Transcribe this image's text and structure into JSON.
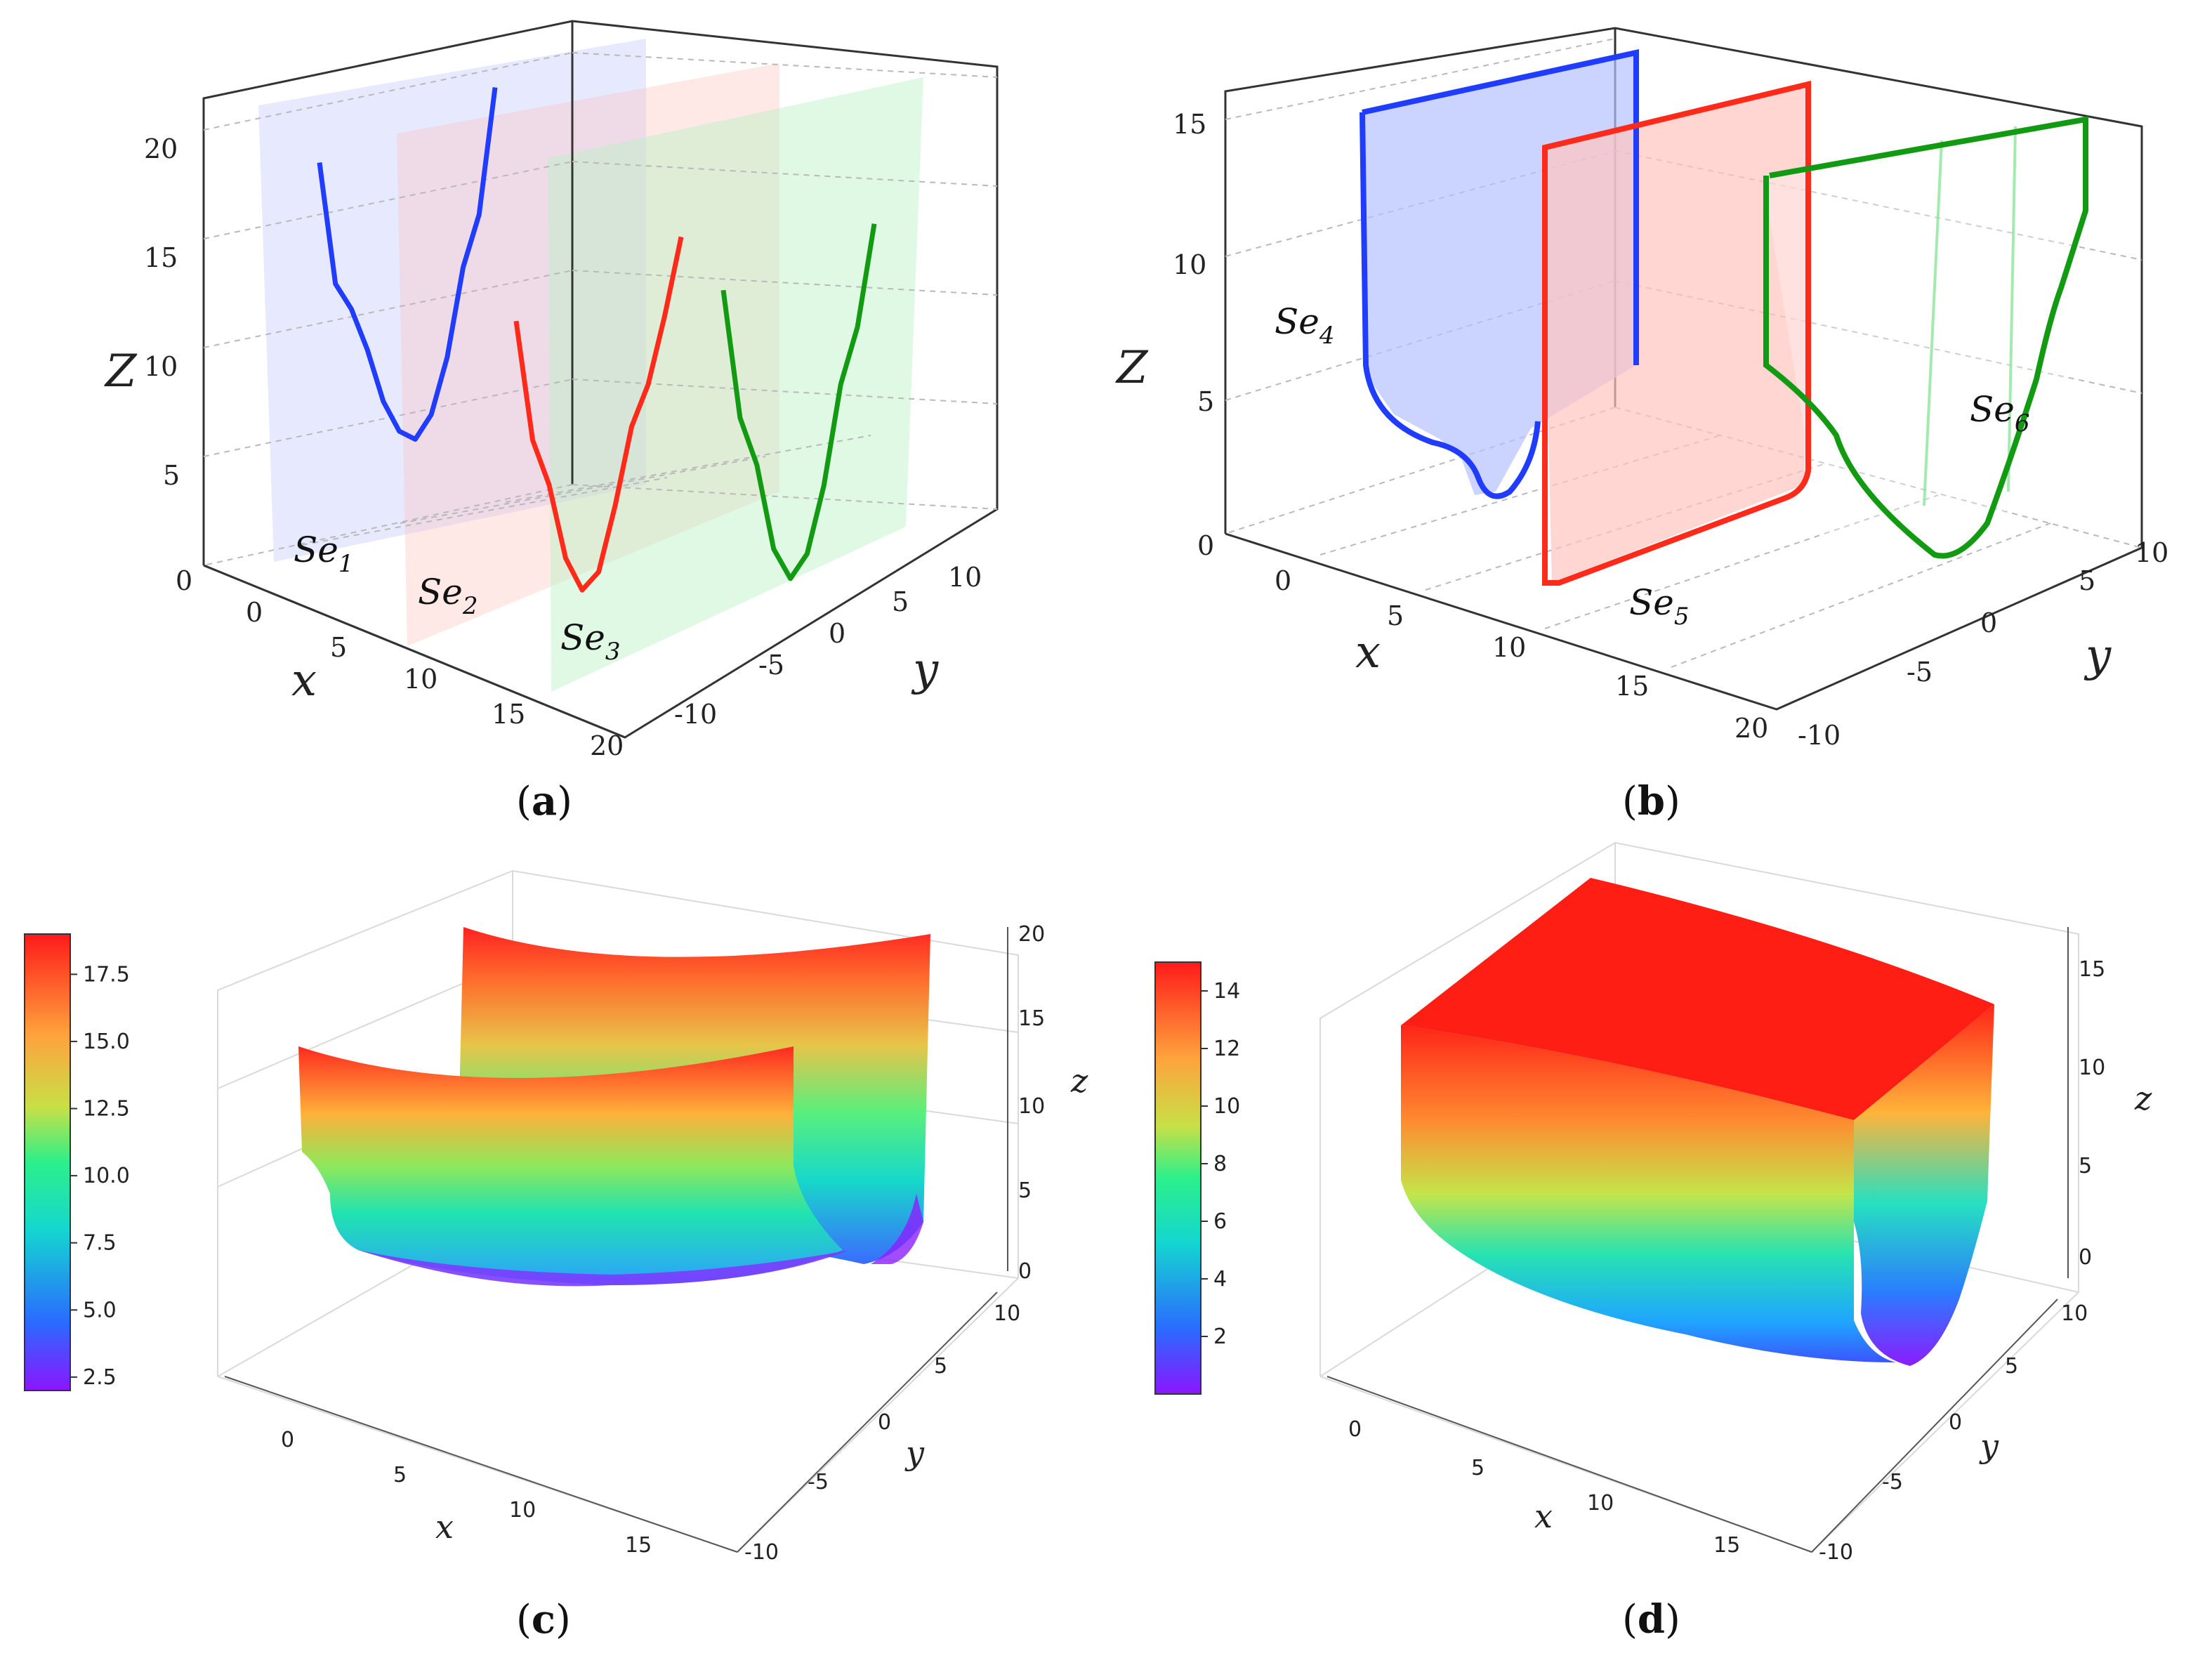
{
  "figure": {
    "panels": [
      "a",
      "b",
      "c",
      "d"
    ]
  },
  "chart_data": [
    {
      "id": "a",
      "type": "line",
      "caption_letter": "a",
      "xlabel": "x",
      "ylabel": "y",
      "zlabel": "Z",
      "x_ticks": [
        "0",
        "5",
        "10",
        "15",
        "20"
      ],
      "y_ticks": [
        "10",
        "5",
        "0",
        "-5",
        "-10"
      ],
      "z_ticks": [
        "0",
        "5",
        "10",
        "15",
        "20"
      ],
      "zlim": [
        0,
        20
      ],
      "series": [
        {
          "name": "Se",
          "sub": "1",
          "color": "#1f3cff",
          "z": [
            18.5,
            12.8,
            11.5,
            9.5,
            7.0,
            5.5,
            5.0,
            6.0,
            8.5,
            12.5,
            14.8,
            20.5
          ]
        },
        {
          "name": "Se",
          "sub": "2",
          "color": "#ff2a1a",
          "z": [
            13.8,
            8.2,
            6.0,
            2.5,
            0.9,
            1.6,
            4.5,
            8.0,
            9.8,
            12.8,
            16.3
          ]
        },
        {
          "name": "Se",
          "sub": "3",
          "color": "#139a13",
          "z": [
            17.8,
            11.8,
            9.5,
            5.5,
            4.0,
            5.0,
            8.0,
            12.5,
            15.0,
            19.6
          ]
        }
      ]
    },
    {
      "id": "b",
      "type": "line",
      "caption_letter": "b",
      "xlabel": "x",
      "ylabel": "y",
      "zlabel": "Z",
      "x_ticks": [
        "0",
        "5",
        "10",
        "15",
        "20"
      ],
      "y_ticks": [
        "10",
        "5",
        "0",
        "-5",
        "-10"
      ],
      "z_ticks": [
        "0",
        "5",
        "10",
        "15"
      ],
      "zlim": [
        0,
        15
      ],
      "series": [
        {
          "name": "Se",
          "sub": "4",
          "color": "#1f3cff"
        },
        {
          "name": "Se",
          "sub": "5",
          "color": "#ff2a1a"
        },
        {
          "name": "Se",
          "sub": "6",
          "color": "#139a13"
        }
      ]
    },
    {
      "id": "c",
      "type": "surface",
      "caption_letter": "c",
      "xlabel": "x",
      "ylabel": "y",
      "zlabel": "z",
      "x_ticks": [
        "0",
        "5",
        "10",
        "15"
      ],
      "y_ticks": [
        "10",
        "5",
        "0",
        "-5",
        "-10"
      ],
      "z_ticks": [
        "0",
        "5",
        "10",
        "15",
        "20"
      ],
      "colorbar_ticks": [
        "17.5",
        "15.0",
        "12.5",
        "10.0",
        "7.5",
        "5.0",
        "2.5"
      ],
      "colorbar_range": [
        2.0,
        19.0
      ]
    },
    {
      "id": "d",
      "type": "surface",
      "caption_letter": "d",
      "xlabel": "x",
      "ylabel": "y",
      "zlabel": "z",
      "x_ticks": [
        "0",
        "5",
        "10",
        "15"
      ],
      "y_ticks": [
        "10",
        "5",
        "0",
        "-5",
        "-10"
      ],
      "z_ticks": [
        "0",
        "5",
        "10",
        "15"
      ],
      "colorbar_ticks": [
        "14",
        "12",
        "10",
        "8",
        "6",
        "4",
        "2"
      ],
      "colorbar_range": [
        0,
        15
      ]
    }
  ]
}
